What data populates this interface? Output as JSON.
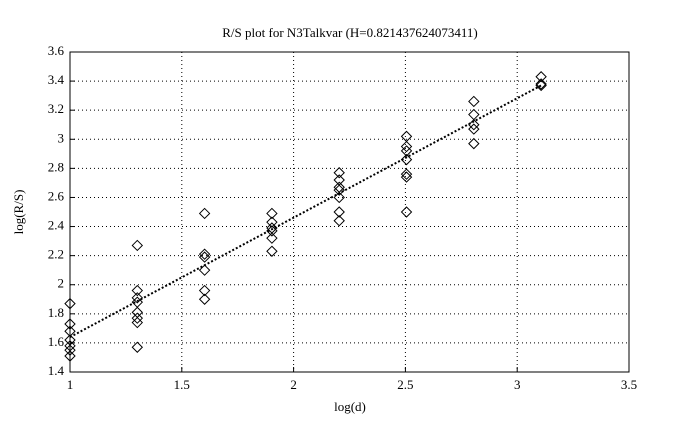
{
  "chart_data": {
    "type": "scatter",
    "title": "R/S plot for N3Talkvar (H=0.821437624073411)",
    "xlabel": "log(d)",
    "ylabel": "log(R/S)",
    "xlim": [
      1,
      3.5
    ],
    "ylim": [
      1.4,
      3.6
    ],
    "xticks": [
      1,
      1.5,
      2,
      2.5,
      3,
      3.5
    ],
    "yticks": [
      1.4,
      1.6,
      1.8,
      2,
      2.2,
      2.4,
      2.6,
      2.8,
      3,
      3.2,
      3.4,
      3.6
    ],
    "grid": true,
    "series": [
      {
        "color": "#000000",
        "marker": "diamond",
        "x": [
          1,
          1,
          1,
          1,
          1,
          1,
          1,
          1.301,
          1.301,
          1.301,
          1.301,
          1.301,
          1.301,
          1.301,
          1.301,
          1.602,
          1.602,
          1.602,
          1.602,
          1.602,
          1.602,
          1.903,
          1.903,
          1.903,
          1.903,
          1.903,
          1.903,
          2.204,
          2.204,
          2.204,
          2.204,
          2.204,
          2.204,
          2.204,
          2.505,
          2.505,
          2.505,
          2.505,
          2.505,
          2.505,
          2.505,
          2.806,
          2.806,
          2.806,
          2.806,
          2.806,
          3.107,
          3.107,
          3.107
        ],
        "values": [
          1.87,
          1.73,
          1.68,
          1.62,
          1.58,
          1.55,
          1.51,
          2.27,
          1.96,
          1.91,
          1.88,
          1.81,
          1.77,
          1.74,
          1.57,
          2.49,
          2.21,
          2.19,
          2.1,
          1.96,
          1.9,
          2.49,
          2.43,
          2.39,
          2.37,
          2.32,
          2.23,
          2.77,
          2.72,
          2.67,
          2.65,
          2.6,
          2.5,
          2.44,
          3.02,
          2.95,
          2.92,
          2.86,
          2.76,
          2.74,
          2.5,
          3.26,
          3.17,
          3.1,
          3.07,
          2.97,
          3.43,
          3.38,
          3.37
        ]
      },
      {
        "color": "#000000",
        "line": "dotted",
        "x": [
          1,
          3.107
        ],
        "values": [
          1.64,
          3.37
        ]
      }
    ]
  }
}
